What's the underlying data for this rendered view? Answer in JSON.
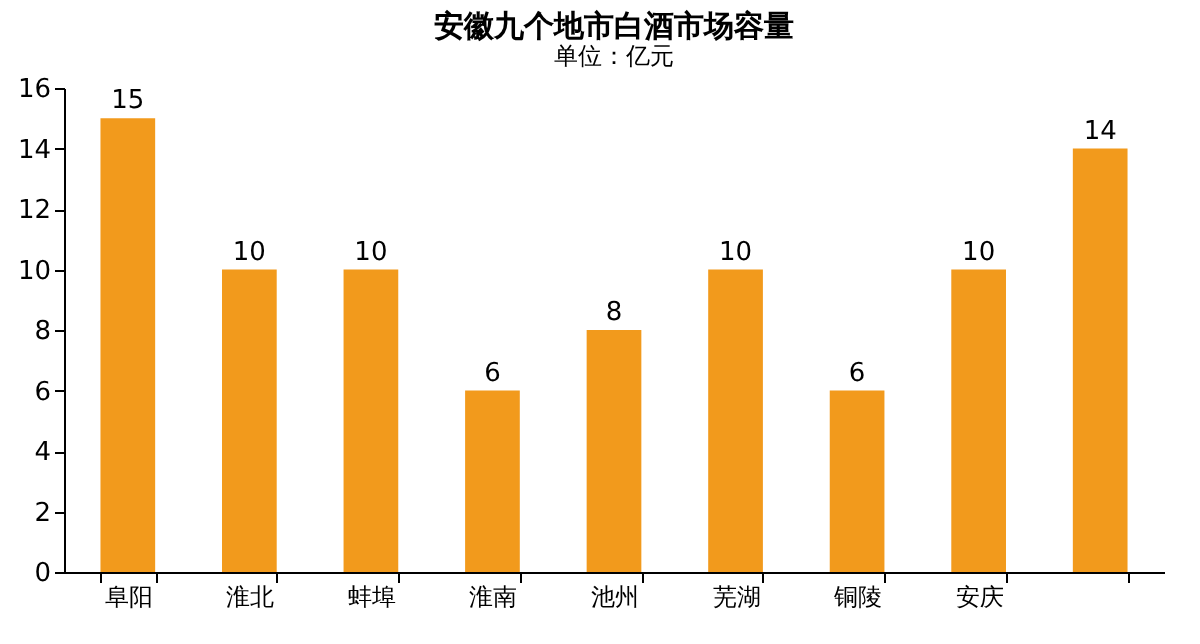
{
  "chart_data": {
    "type": "bar",
    "title": "安徽九个地市白酒市场容量",
    "annotations": [
      "单位：亿元"
    ],
    "categories": [
      "阜阳",
      "淮北",
      "蚌埠",
      "淮南",
      "池州",
      "芜湖",
      "铜陵",
      "安庆",
      null
    ],
    "values": [
      15,
      10,
      10,
      6,
      8,
      10,
      6,
      10,
      14
    ],
    "color": "#f29a1c",
    "ylim": [
      0,
      16
    ],
    "yticks": [
      0,
      2,
      4,
      6,
      8,
      10,
      12,
      14,
      16
    ],
    "data_labels": true,
    "grid": false
  }
}
